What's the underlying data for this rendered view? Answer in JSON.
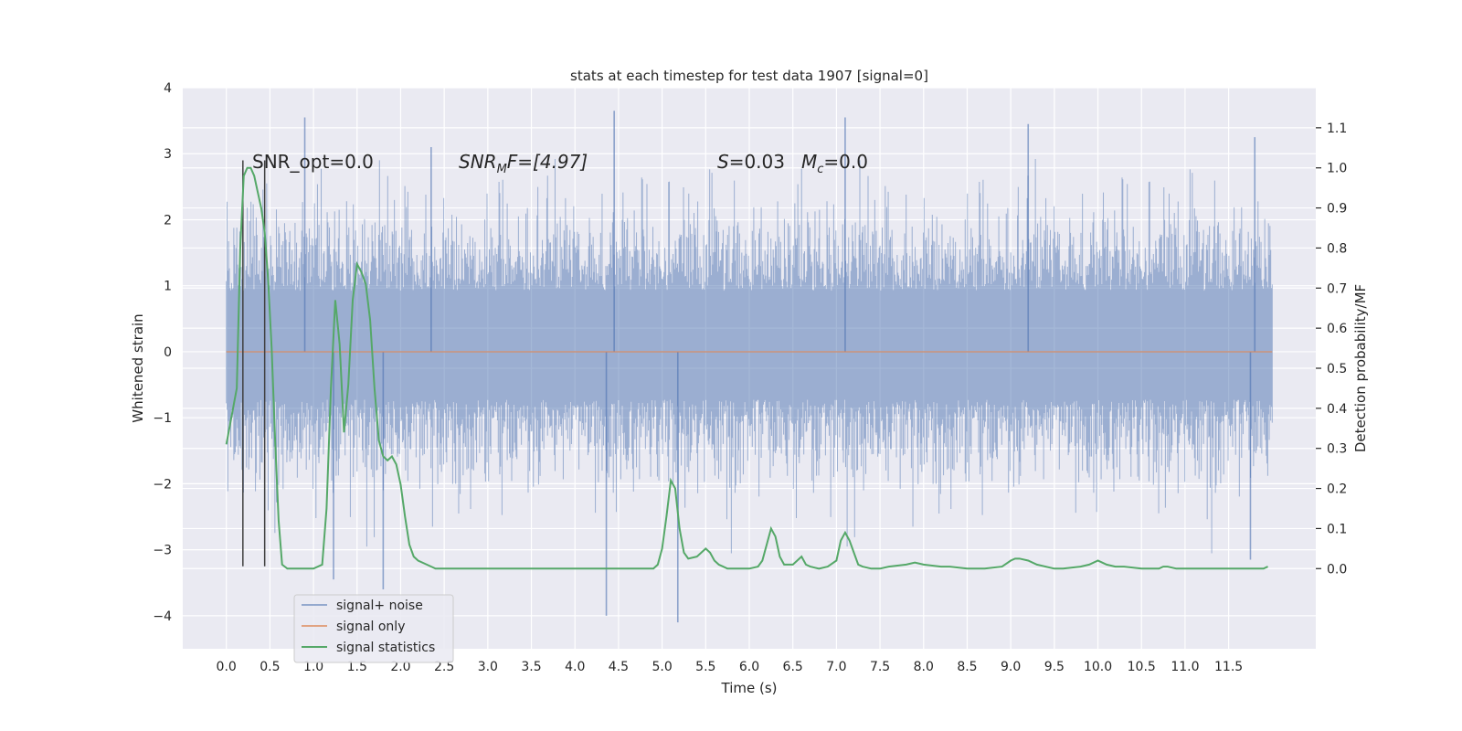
{
  "chart_data": {
    "type": "line",
    "title": "stats at each timestep for test data 1907 [signal=0]",
    "xlabel": "Time (s)",
    "ylabel_left": "Whitened strain",
    "ylabel_right": "Detection probability/MF",
    "xlim": [
      -0.5,
      12.5
    ],
    "ylim_left": [
      -4.5,
      4.0
    ],
    "ylim_right": [
      -0.2,
      1.2
    ],
    "x_ticks": [
      0.0,
      0.5,
      1.0,
      1.5,
      2.0,
      2.5,
      3.0,
      3.5,
      4.0,
      4.5,
      5.0,
      5.5,
      6.0,
      6.5,
      7.0,
      7.5,
      8.0,
      8.5,
      9.0,
      9.5,
      10.0,
      10.5,
      11.0,
      11.5
    ],
    "x_tick_labels": [
      "0.0",
      "0.5",
      "1.0",
      "1.5",
      "2.0",
      "2.5",
      "3.0",
      "3.5",
      "4.0",
      "4.5",
      "5.0",
      "5.5",
      "6.0",
      "6.5",
      "7.0",
      "7.5",
      "8.0",
      "8.5",
      "9.0",
      "9.5",
      "10.0",
      "10.5",
      "11.0",
      "11.5"
    ],
    "left_ticks": [
      -4,
      -3,
      -2,
      -1,
      0,
      1,
      2,
      3,
      4
    ],
    "left_tick_labels": [
      "−4",
      "−3",
      "−2",
      "−1",
      "0",
      "1",
      "2",
      "3",
      "4"
    ],
    "right_ticks": [
      0.0,
      0.1,
      0.2,
      0.3,
      0.4,
      0.5,
      0.6,
      0.7,
      0.8,
      0.9,
      1.0,
      1.1
    ],
    "right_tick_labels": [
      "0.0",
      "0.1",
      "0.2",
      "0.3",
      "0.4",
      "0.5",
      "0.6",
      "0.7",
      "0.8",
      "0.9",
      "1.0",
      "1.1"
    ],
    "grid": true,
    "legend_placement": "lower-left",
    "annotations": {
      "snr_opt": "SNR_opt=0.0",
      "snr_mf_base": "SNR",
      "snr_mf_sub": "M",
      "snr_mf_rest": "F=[4.97]",
      "s_label": "S",
      "s_value": "=0.03",
      "mc_label": "M",
      "mc_sub": "c",
      "mc_value": "=0.0"
    },
    "series": [
      {
        "name": "signal+ noise",
        "axis": "left",
        "color": "#4c72b0",
        "x_range": [
          0.0,
          12.0
        ],
        "typical_envelope": [
          -1.4,
          1.6
        ],
        "extremes": [
          {
            "x": 0.9,
            "y": 3.55
          },
          {
            "x": 1.23,
            "y": -3.45
          },
          {
            "x": 1.8,
            "y": -3.6
          },
          {
            "x": 2.35,
            "y": 3.1
          },
          {
            "x": 4.45,
            "y": 3.65
          },
          {
            "x": 4.36,
            "y": -4.0
          },
          {
            "x": 5.18,
            "y": -4.1
          },
          {
            "x": 7.1,
            "y": 3.55
          },
          {
            "x": 9.2,
            "y": 3.45
          },
          {
            "x": 11.8,
            "y": 3.25
          },
          {
            "x": 11.75,
            "y": -3.15
          }
        ]
      },
      {
        "name": "signal only",
        "axis": "left",
        "color": "#dd8452",
        "x": [
          0.0,
          12.0
        ],
        "y": [
          0.0,
          0.0
        ]
      },
      {
        "name": "signal statistics",
        "axis": "right",
        "color": "#55a868",
        "x": [
          0.0,
          0.06,
          0.12,
          0.16,
          0.2,
          0.24,
          0.28,
          0.32,
          0.36,
          0.4,
          0.44,
          0.48,
          0.52,
          0.56,
          0.6,
          0.64,
          0.7,
          0.8,
          0.9,
          1.0,
          1.1,
          1.15,
          1.2,
          1.25,
          1.3,
          1.35,
          1.4,
          1.45,
          1.5,
          1.55,
          1.6,
          1.65,
          1.7,
          1.75,
          1.8,
          1.85,
          1.9,
          1.95,
          2.0,
          2.05,
          2.1,
          2.15,
          2.2,
          2.3,
          2.4,
          2.5,
          2.7,
          3.0,
          3.5,
          4.0,
          4.5,
          4.9,
          4.95,
          5.0,
          5.05,
          5.1,
          5.15,
          5.2,
          5.25,
          5.3,
          5.4,
          5.5,
          5.55,
          5.6,
          5.65,
          5.7,
          5.75,
          5.8,
          5.9,
          6.0,
          6.1,
          6.15,
          6.2,
          6.25,
          6.3,
          6.35,
          6.4,
          6.5,
          6.55,
          6.6,
          6.65,
          6.7,
          6.8,
          6.9,
          7.0,
          7.05,
          7.1,
          7.15,
          7.2,
          7.25,
          7.3,
          7.4,
          7.5,
          7.6,
          7.8,
          7.9,
          8.0,
          8.2,
          8.3,
          8.5,
          8.7,
          8.9,
          9.0,
          9.05,
          9.1,
          9.2,
          9.3,
          9.4,
          9.5,
          9.6,
          9.8,
          9.9,
          10.0,
          10.05,
          10.1,
          10.2,
          10.3,
          10.5,
          10.7,
          10.75,
          10.8,
          10.9,
          11.0,
          11.2,
          11.5,
          11.7,
          11.8,
          11.9,
          11.95
        ],
        "y": [
          0.31,
          0.38,
          0.45,
          0.8,
          0.98,
          1.0,
          1.0,
          0.98,
          0.94,
          0.9,
          0.84,
          0.72,
          0.55,
          0.32,
          0.12,
          0.01,
          0.0,
          0.0,
          0.0,
          0.0,
          0.01,
          0.15,
          0.45,
          0.67,
          0.56,
          0.34,
          0.46,
          0.67,
          0.76,
          0.74,
          0.71,
          0.62,
          0.45,
          0.32,
          0.28,
          0.27,
          0.28,
          0.26,
          0.21,
          0.13,
          0.06,
          0.03,
          0.02,
          0.01,
          0.0,
          0.0,
          0.0,
          0.0,
          0.0,
          0.0,
          0.0,
          0.0,
          0.01,
          0.05,
          0.13,
          0.22,
          0.2,
          0.1,
          0.04,
          0.025,
          0.03,
          0.05,
          0.04,
          0.02,
          0.01,
          0.005,
          0.0,
          0.0,
          0.0,
          0.0,
          0.005,
          0.02,
          0.06,
          0.1,
          0.08,
          0.03,
          0.01,
          0.01,
          0.02,
          0.03,
          0.01,
          0.005,
          0.0,
          0.005,
          0.02,
          0.07,
          0.09,
          0.07,
          0.04,
          0.01,
          0.005,
          0.0,
          0.0,
          0.005,
          0.01,
          0.015,
          0.01,
          0.005,
          0.005,
          0.0,
          0.0,
          0.005,
          0.02,
          0.025,
          0.025,
          0.02,
          0.01,
          0.005,
          0.0,
          0.0,
          0.005,
          0.01,
          0.02,
          0.015,
          0.01,
          0.005,
          0.005,
          0.0,
          0.0,
          0.005,
          0.005,
          0.0,
          0.0,
          0.0,
          0.0,
          0.0,
          0.0,
          0.0,
          0.005
        ]
      }
    ],
    "vertical_markers": [
      {
        "x": 0.19,
        "y_bottom": -3.25,
        "y_top": 2.9
      },
      {
        "x": 0.44,
        "y_bottom": -3.25,
        "y_top": 2.9
      }
    ]
  }
}
